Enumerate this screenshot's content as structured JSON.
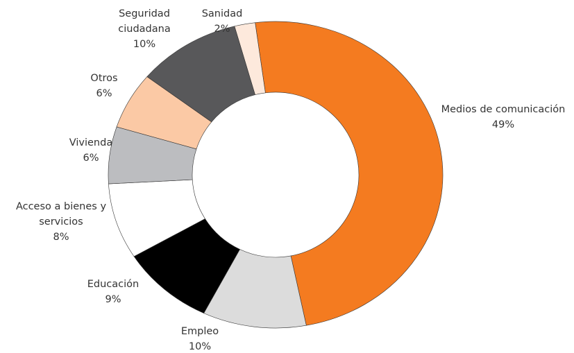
{
  "chart_data": {
    "type": "donut",
    "categories": [
      "Medios de comunicación",
      "Empleo",
      "Educación",
      "Acceso a bienes y servicios",
      "Vivienda",
      "Otros",
      "Seguridad ciudadana",
      "Sanidad"
    ],
    "values": [
      49,
      10,
      9,
      8,
      6,
      6,
      10,
      2
    ],
    "value_labels": [
      "49%",
      "10%",
      "9%",
      "8%",
      "6%",
      "6%",
      "10%",
      "2%"
    ],
    "colors": [
      "#f47b20",
      "#dcdcdc",
      "#000000",
      "#ffffff",
      "#bcbdc0",
      "#fbc9a5",
      "#58585a",
      "#fde9dc"
    ]
  }
}
